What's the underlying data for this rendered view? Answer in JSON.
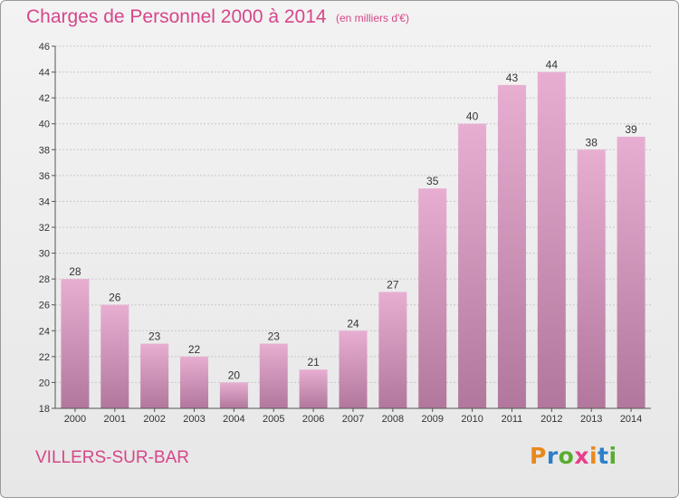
{
  "title": "Charges de Personnel 2000 à 2014",
  "subtitle": "(en milliers d'€)",
  "town": "VILLERS-SUR-BAR",
  "logo": {
    "text": "Proxiti",
    "letter_colors": [
      "#e8891c",
      "#2d7fc8",
      "#57ad2f",
      "#e83e8c",
      "#e8891c",
      "#2d7fc8",
      "#57ad2f"
    ]
  },
  "colors": {
    "accent": "#d6468a",
    "bar_top": "#e8aed2",
    "bar_bottom": "#b2779c",
    "grid": "#c8c8c8",
    "axis_text": "#333333"
  },
  "chart_data": {
    "type": "bar",
    "categories": [
      "2000",
      "2001",
      "2002",
      "2003",
      "2004",
      "2005",
      "2006",
      "2007",
      "2008",
      "2009",
      "2010",
      "2011",
      "2012",
      "2013",
      "2014"
    ],
    "values": [
      28,
      26,
      23,
      22,
      20,
      23,
      21,
      24,
      27,
      35,
      40,
      43,
      44,
      38,
      39
    ],
    "ylim": [
      18,
      46
    ],
    "yticks": [
      18,
      20,
      22,
      24,
      26,
      28,
      30,
      32,
      34,
      36,
      38,
      40,
      42,
      44,
      46
    ],
    "xlabel": "",
    "ylabel": "",
    "grid": true,
    "data_labels": true
  }
}
